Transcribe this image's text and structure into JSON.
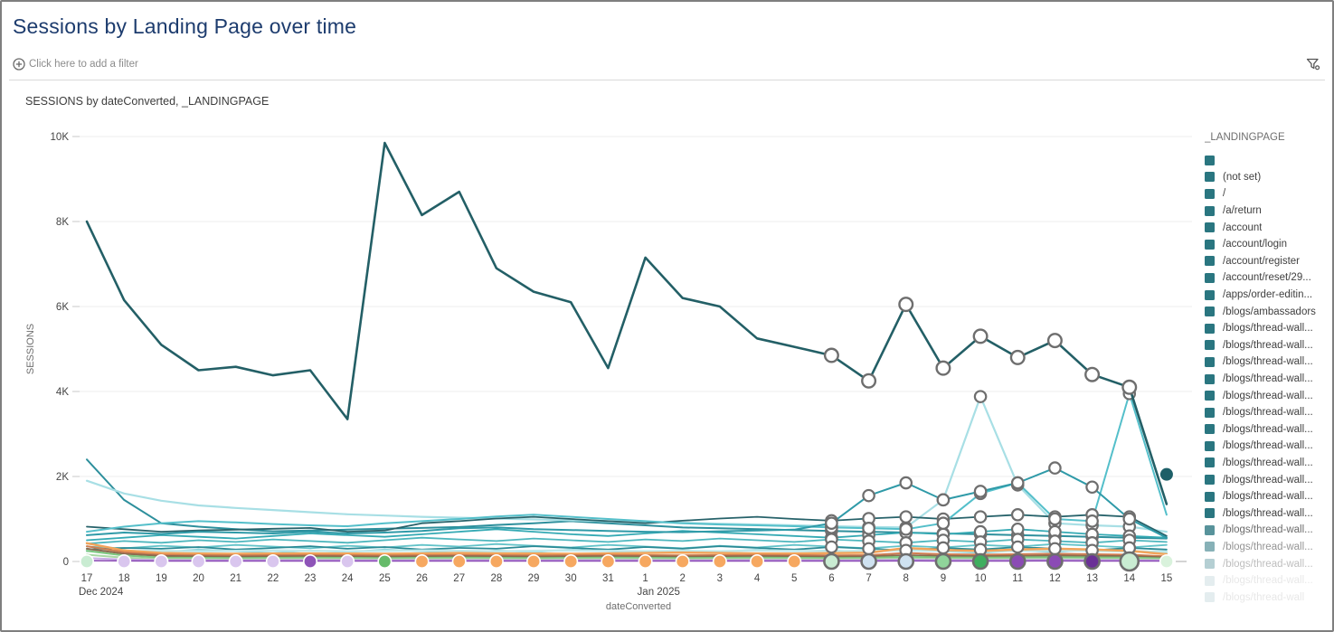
{
  "header": {
    "title": "Sessions by Landing Page over time"
  },
  "filter_bar": {
    "add_filter_label": "Click here to add a filter",
    "left_icon": "circle-plus-icon",
    "right_icon": "filter-funnel-icon"
  },
  "chart": {
    "title": "SESSIONS by dateConverted, _LANDINGPAGE",
    "y_axis": {
      "title": "SESSIONS",
      "ticks": [
        {
          "label": "0",
          "value": 0
        },
        {
          "label": "2K",
          "value": 2000
        },
        {
          "label": "4K",
          "value": 4000
        },
        {
          "label": "6K",
          "value": 6000
        },
        {
          "label": "8K",
          "value": 8000
        },
        {
          "label": "10K",
          "value": 10000
        }
      ]
    },
    "x_axis": {
      "title": "dateConverted",
      "sub_labels": [
        {
          "index": 0,
          "text": "Dec 2024"
        },
        {
          "index": 15,
          "text": "Jan 2025"
        }
      ]
    },
    "legend": {
      "title": "_LANDINGPAGE",
      "swatch_color": "#2a7680",
      "fade_start_index": 22,
      "items": [
        "",
        "(not set)",
        "/",
        "/a/return",
        "/account",
        "/account/login",
        "/account/register",
        "/account/reset/29...",
        "/apps/order-editin...",
        "/blogs/ambassadors",
        "/blogs/thread-wall...",
        "/blogs/thread-wall...",
        "/blogs/thread-wall...",
        "/blogs/thread-wall...",
        "/blogs/thread-wall...",
        "/blogs/thread-wall...",
        "/blogs/thread-wall...",
        "/blogs/thread-wall...",
        "/blogs/thread-wall...",
        "/blogs/thread-wall...",
        "/blogs/thread-wall...",
        "/blogs/thread-wall...",
        "/blogs/thread-wall...",
        "/blogs/thread-wall...",
        "/blogs/thread-wall...",
        "/blogs/thread-wall...",
        "/blogs/thread-wall"
      ]
    }
  },
  "chart_data": {
    "type": "line",
    "title": "SESSIONS by dateConverted, _LANDINGPAGE",
    "xlabel": "dateConverted",
    "ylabel": "SESSIONS",
    "ylim": [
      0,
      10000
    ],
    "grid": true,
    "legend_position": "right",
    "x": [
      "17",
      "18",
      "19",
      "20",
      "21",
      "22",
      "23",
      "24",
      "25",
      "26",
      "27",
      "28",
      "29",
      "30",
      "31",
      "1",
      "2",
      "3",
      "4",
      "5",
      "6",
      "7",
      "8",
      "9",
      "10",
      "11",
      "12",
      "13",
      "14",
      "15"
    ],
    "marker_window": {
      "from": 20,
      "to": 28
    },
    "series": [
      {
        "name": "teal-steep-start",
        "color": "#2d8f9c",
        "width": 2,
        "rings": true,
        "values": [
          2400,
          1450,
          900,
          820,
          760,
          710,
          730,
          750,
          770,
          790,
          810,
          860,
          900,
          950,
          900,
          850,
          800,
          780,
          760,
          740,
          720,
          700,
          680,
          660,
          640,
          620,
          600,
          580,
          560,
          540
        ]
      },
      {
        "name": "teal-pale-spike-jan10",
        "color": "#a8dfe5",
        "width": 2.2,
        "rings": true,
        "values": [
          1900,
          1600,
          1430,
          1320,
          1260,
          1210,
          1160,
          1110,
          1080,
          1050,
          1030,
          1010,
          990,
          970,
          950,
          930,
          910,
          890,
          870,
          850,
          830,
          810,
          800,
          1450,
          3880,
          1800,
          900,
          850,
          820,
          700
        ]
      },
      {
        "name": "teal-dark-band",
        "color": "#27626a",
        "width": 1.8,
        "rings": true,
        "values": [
          820,
          760,
          700,
          730,
          750,
          770,
          790,
          700,
          730,
          900,
          950,
          1010,
          1050,
          1000,
          950,
          900,
          960,
          1010,
          1050,
          1000,
          960,
          1010,
          1050,
          1000,
          1050,
          1100,
          1050,
          1100,
          1050,
          600
        ]
      },
      {
        "name": "teal-band-a",
        "color": "#35aab4",
        "width": 1.8,
        "rings": true,
        "values": [
          500,
          560,
          620,
          580,
          540,
          600,
          660,
          620,
          580,
          640,
          700,
          760,
          700,
          640,
          600,
          660,
          720,
          680,
          640,
          600,
          560,
          620,
          680,
          640,
          700,
          760,
          700,
          640,
          600,
          560
        ]
      },
      {
        "name": "teal-band-b",
        "color": "#4db6bd",
        "width": 1.8,
        "rings": true,
        "values": [
          420,
          480,
          440,
          500,
          460,
          520,
          480,
          440,
          500,
          560,
          520,
          480,
          540,
          500,
          460,
          520,
          480,
          540,
          500,
          460,
          520,
          480,
          440,
          500,
          460,
          520,
          480,
          440,
          500,
          460
        ]
      },
      {
        "name": "teal-band-c",
        "color": "#63c3c9",
        "width": 1.8,
        "rings": false,
        "values": [
          350,
          310,
          370,
          330,
          390,
          350,
          310,
          370,
          330,
          390,
          350,
          410,
          370,
          330,
          390,
          350,
          310,
          370,
          330,
          390,
          350,
          310,
          370,
          330,
          390,
          350,
          410,
          370,
          330,
          390
        ]
      },
      {
        "name": "teal-band-d",
        "color": "#2a8a95",
        "width": 1.8,
        "rings": true,
        "values": [
          280,
          320,
          300,
          340,
          280,
          320,
          360,
          300,
          340,
          280,
          320,
          300,
          360,
          320,
          280,
          340,
          300,
          360,
          320,
          280,
          340,
          300,
          260,
          320,
          280,
          340,
          300,
          260,
          320,
          280
        ]
      },
      {
        "name": "teal-band-e",
        "color": "#8fd4da",
        "width": 1.8,
        "rings": false,
        "values": [
          240,
          260,
          220,
          280,
          240,
          200,
          260,
          220,
          280,
          240,
          200,
          260,
          220,
          280,
          240,
          200,
          260,
          220,
          280,
          240,
          260,
          220,
          280,
          240,
          200,
          260,
          220,
          280,
          240,
          200
        ]
      },
      {
        "name": "teal-pale-low-band",
        "color": "#bfe8ea",
        "width": 2.5,
        "rings": false,
        "values": [
          260,
          240,
          250,
          240,
          250,
          260,
          250,
          240,
          250,
          260,
          250,
          240,
          250,
          260,
          250,
          240,
          250,
          240,
          260,
          250,
          240,
          250,
          260,
          250,
          240,
          250,
          260,
          250,
          240,
          230
        ]
      },
      {
        "name": "orange-low",
        "color": "#f2a45a",
        "width": 2.5,
        "rings": false,
        "values": [
          430,
          260,
          200,
          185,
          180,
          185,
          190,
          185,
          180,
          190,
          200,
          190,
          185,
          180,
          190,
          200,
          210,
          200,
          190,
          185,
          195,
          205,
          320,
          270,
          250,
          280,
          300,
          280,
          250,
          170
        ]
      },
      {
        "name": "salmon-low",
        "color": "#cf7d50",
        "width": 2,
        "rings": false,
        "values": [
          360,
          220,
          160,
          150,
          145,
          150,
          155,
          150,
          145,
          150,
          155,
          150,
          145,
          150,
          155,
          150,
          145,
          150,
          155,
          150,
          145,
          150,
          200,
          170,
          160,
          170,
          180,
          170,
          160,
          120
        ]
      },
      {
        "name": "brown-low",
        "color": "#8a6a4f",
        "width": 2,
        "rings": false,
        "values": [
          300,
          180,
          130,
          120,
          115,
          120,
          125,
          120,
          115,
          120,
          125,
          120,
          115,
          120,
          125,
          120,
          115,
          120,
          125,
          120,
          115,
          120,
          150,
          130,
          125,
          130,
          140,
          130,
          125,
          95
        ]
      },
      {
        "name": "green-low-a",
        "color": "#7cc77f",
        "width": 2,
        "rings": false,
        "values": [
          250,
          140,
          90,
          85,
          80,
          85,
          90,
          85,
          80,
          85,
          90,
          85,
          80,
          85,
          90,
          85,
          80,
          85,
          90,
          85,
          80,
          85,
          110,
          95,
          90,
          95,
          100,
          95,
          90,
          70
        ]
      },
      {
        "name": "green-low-b",
        "color": "#a9d9a5",
        "width": 2,
        "rings": false,
        "values": [
          160,
          90,
          60,
          55,
          50,
          55,
          60,
          55,
          50,
          55,
          60,
          55,
          50,
          55,
          60,
          55,
          50,
          55,
          60,
          55,
          50,
          55,
          70,
          60,
          55,
          60,
          65,
          60,
          55,
          45
        ]
      },
      {
        "name": "lavender-low",
        "color": "#c9aee6",
        "width": 2,
        "rings": false,
        "values": [
          80,
          45,
          35,
          32,
          30,
          32,
          34,
          32,
          30,
          32,
          34,
          32,
          30,
          32,
          34,
          32,
          30,
          32,
          34,
          32,
          30,
          32,
          40,
          35,
          32,
          35,
          38,
          35,
          32,
          25
        ]
      },
      {
        "name": "purple-low",
        "color": "#8b4bb5",
        "width": 1.6,
        "rings": false,
        "values": [
          20,
          15,
          12,
          12,
          12,
          12,
          12,
          12,
          12,
          12,
          12,
          12,
          12,
          12,
          12,
          12,
          12,
          12,
          12,
          12,
          12,
          12,
          15,
          13,
          12,
          13,
          14,
          13,
          12,
          10
        ]
      },
      {
        "name": "teal-bright-spike-jan14",
        "color": "#54bfca",
        "width": 2,
        "rings": true,
        "values": [
          700,
          820,
          900,
          950,
          920,
          880,
          850,
          830,
          900,
          950,
          1000,
          1060,
          1100,
          1050,
          1000,
          950,
          900,
          870,
          850,
          830,
          800,
          780,
          760,
          900,
          1600,
          1850,
          1000,
          950,
          3950,
          1100
        ]
      },
      {
        "name": "teal-medium-rising",
        "color": "#2f9aa8",
        "width": 2,
        "rings": true,
        "values": [
          620,
          680,
          650,
          700,
          680,
          660,
          700,
          660,
          680,
          720,
          780,
          800,
          760,
          740,
          720,
          700,
          690,
          710,
          730,
          750,
          900,
          1550,
          1850,
          1450,
          1650,
          1850,
          2200,
          1750,
          1000,
          560
        ]
      },
      {
        "name": "main-dark-teal",
        "color": "#235f66",
        "width": 2.6,
        "rings": true,
        "front": true,
        "values": [
          8000,
          6150,
          5100,
          4500,
          4580,
          4380,
          4500,
          3350,
          9850,
          8150,
          8700,
          6900,
          6350,
          6100,
          4550,
          7150,
          6200,
          6000,
          5250,
          5050,
          4850,
          4250,
          6050,
          4550,
          5300,
          4800,
          5200,
          4400,
          4100,
          1350
        ]
      }
    ],
    "zero_markers": [
      {
        "index": 0,
        "color": "#c9ecd2",
        "ring": false
      },
      {
        "index": 1,
        "color": "#d9c6ee",
        "ring": false
      },
      {
        "index": 2,
        "color": "#d9c6ee",
        "ring": false
      },
      {
        "index": 3,
        "color": "#d9c6ee",
        "ring": false
      },
      {
        "index": 4,
        "color": "#d9c6ee",
        "ring": false
      },
      {
        "index": 5,
        "color": "#d9c6ee",
        "ring": false
      },
      {
        "index": 6,
        "color": "#8e54b8",
        "ring": false
      },
      {
        "index": 7,
        "color": "#d9c6ee",
        "ring": false
      },
      {
        "index": 8,
        "color": "#66bb6a",
        "ring": false
      },
      {
        "index": 9,
        "color": "#f6a860",
        "ring": false
      },
      {
        "index": 10,
        "color": "#f6a860",
        "ring": false
      },
      {
        "index": 11,
        "color": "#f6a860",
        "ring": false
      },
      {
        "index": 12,
        "color": "#f6a860",
        "ring": false
      },
      {
        "index": 13,
        "color": "#f6a860",
        "ring": false
      },
      {
        "index": 14,
        "color": "#f6a860",
        "ring": false
      },
      {
        "index": 15,
        "color": "#f6a860",
        "ring": false
      },
      {
        "index": 16,
        "color": "#f6a860",
        "ring": false
      },
      {
        "index": 17,
        "color": "#f6a860",
        "ring": false
      },
      {
        "index": 18,
        "color": "#f6a860",
        "ring": false
      },
      {
        "index": 19,
        "color": "#f6a860",
        "ring": false
      },
      {
        "index": 20,
        "color": "#c9ecd2",
        "ring": true
      },
      {
        "index": 21,
        "color": "#cfe2f0",
        "ring": true
      },
      {
        "index": 22,
        "color": "#cfe2f0",
        "ring": true
      },
      {
        "index": 23,
        "color": "#90d49a",
        "ring": true
      },
      {
        "index": 24,
        "color": "#3fae5f",
        "ring": true
      },
      {
        "index": 25,
        "color": "#8b4bb5",
        "ring": true
      },
      {
        "index": 26,
        "color": "#8b4bb5",
        "ring": true
      },
      {
        "index": 27,
        "color": "#6a3096",
        "ring": true
      },
      {
        "index": 28,
        "color": "#c9ecd2",
        "ring": true,
        "big": true
      },
      {
        "index": 29,
        "color": "#d9f2dc",
        "ring": false
      }
    ],
    "isolated_points": [
      {
        "index": 29,
        "value": 2050,
        "color": "#1d5f68"
      }
    ]
  },
  "colors": {
    "title": "#1d3c6e",
    "grid": "#ededed",
    "axis_text": "#454545",
    "axis_title": "#6e6e6e",
    "ring_stroke": "#6e6e6e"
  }
}
